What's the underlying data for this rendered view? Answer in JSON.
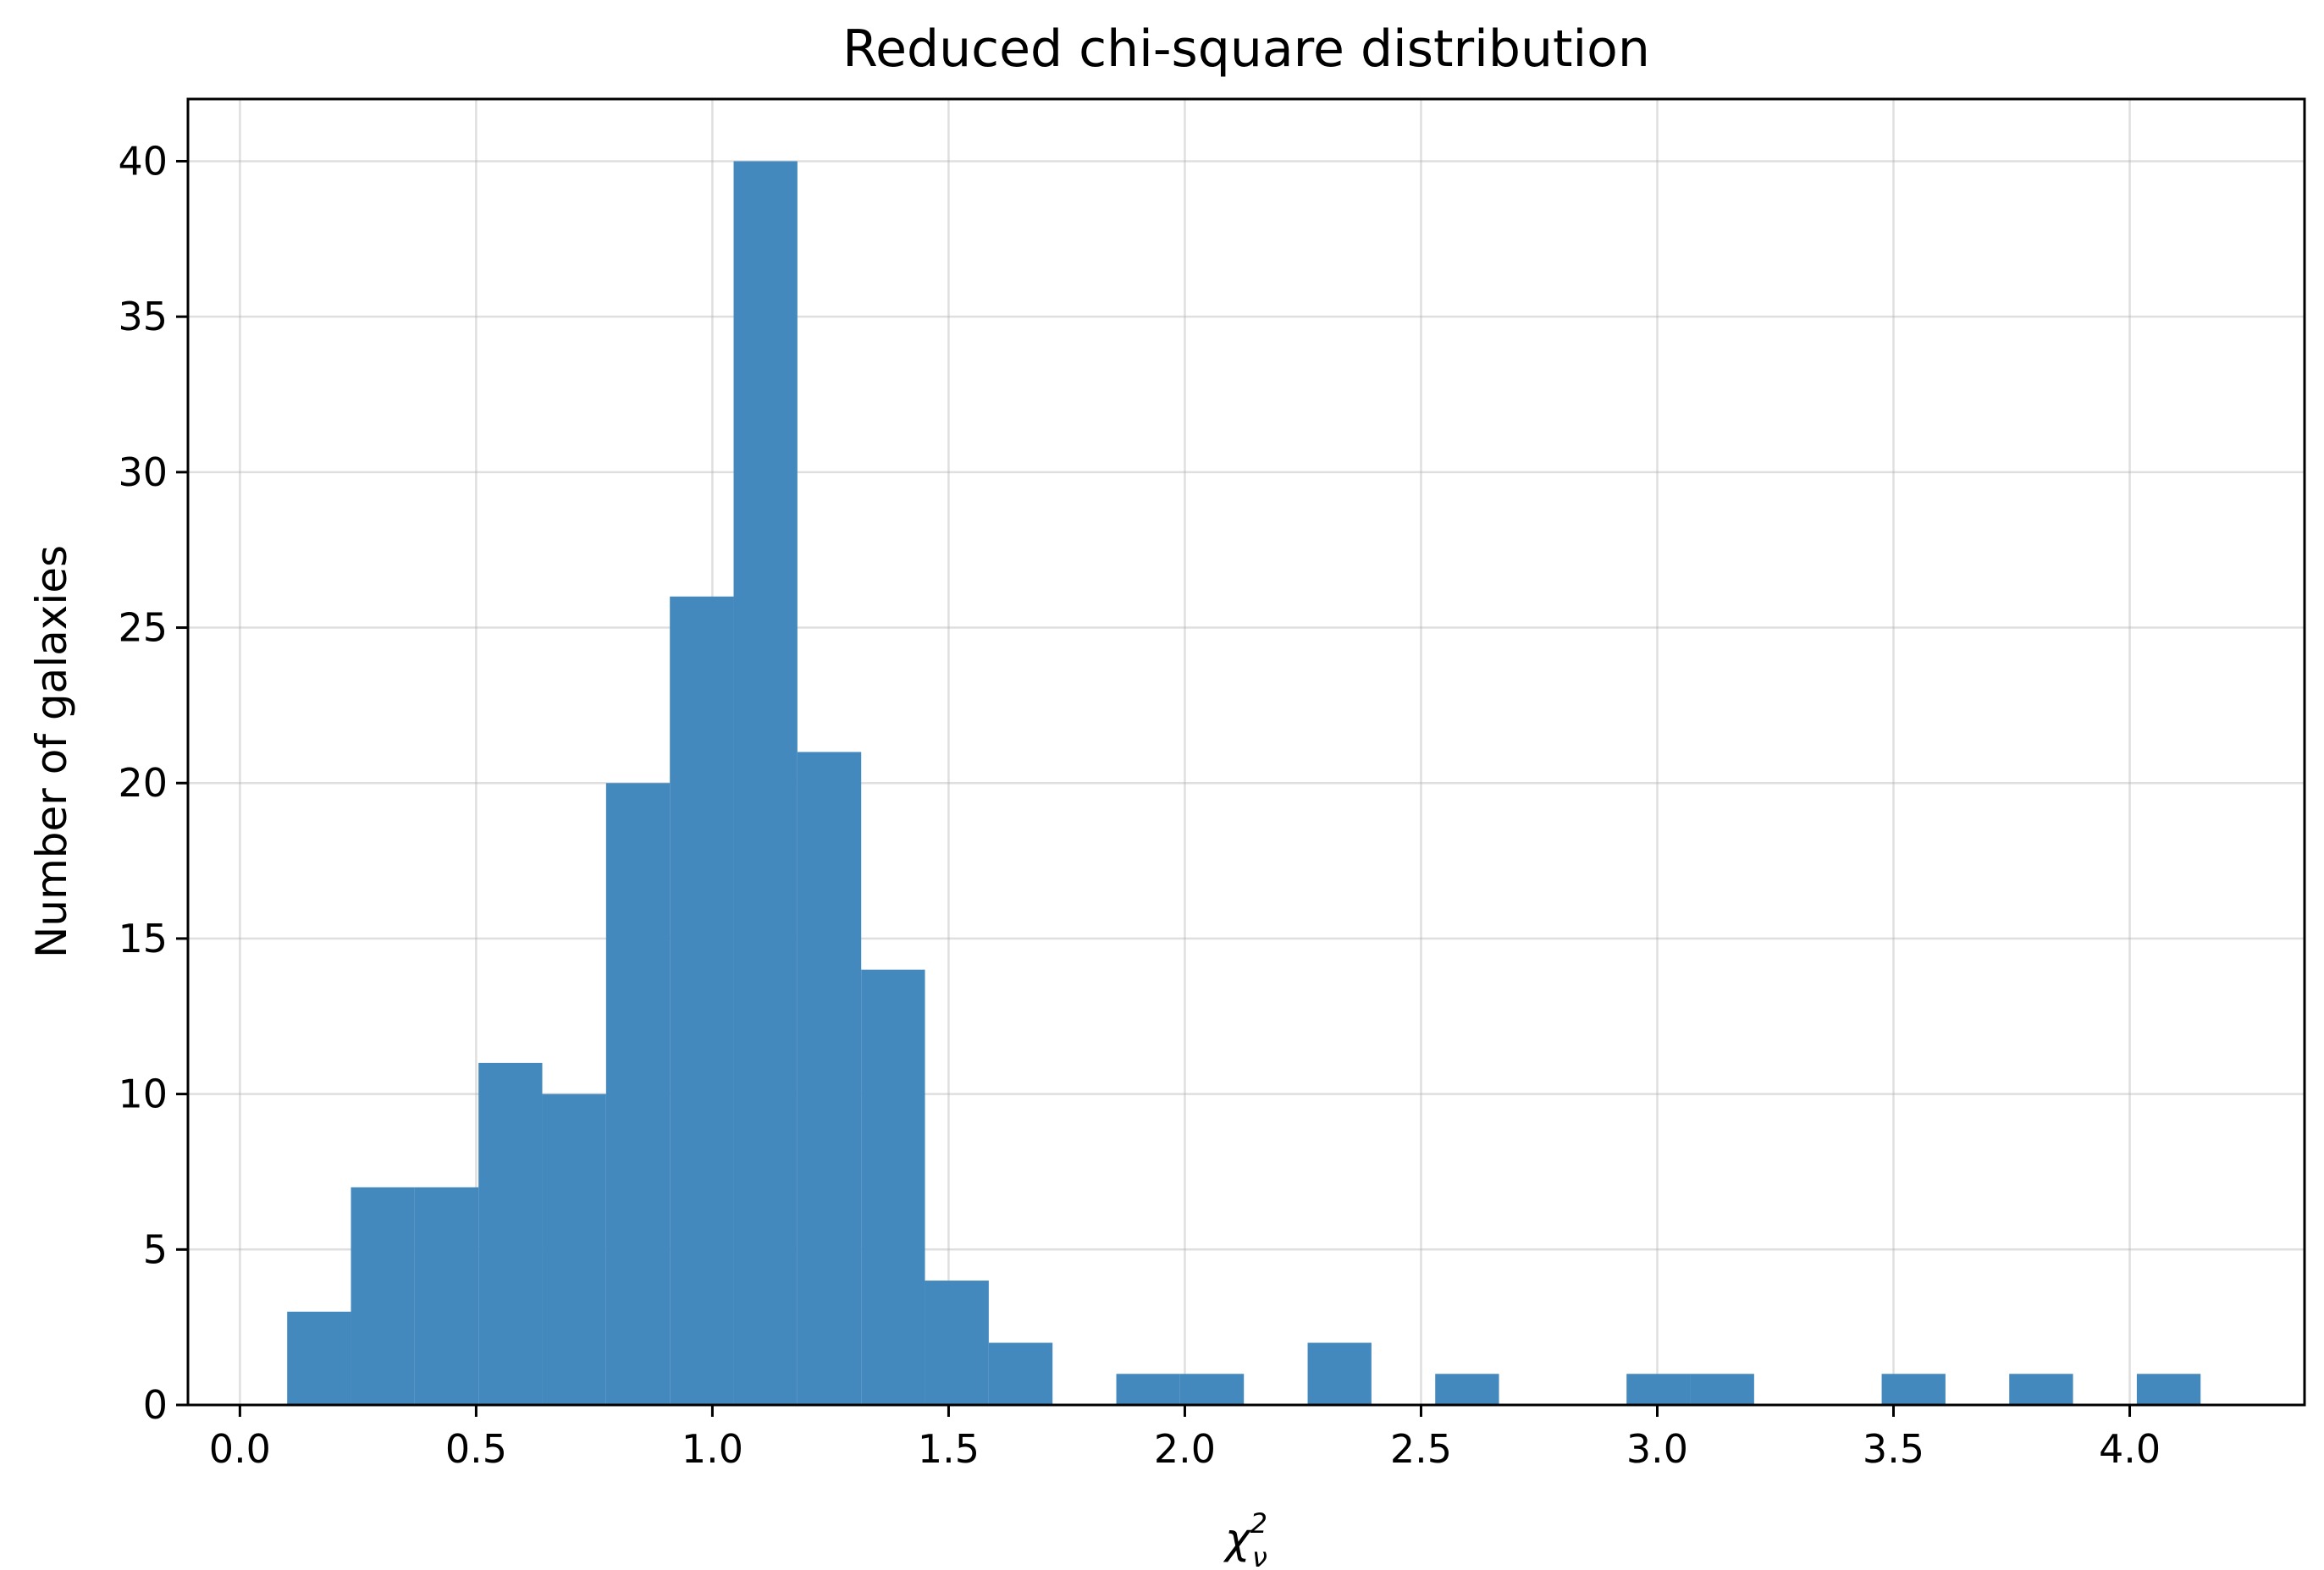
{
  "chart_data": {
    "type": "bar",
    "title": "Reduced chi-square distribution",
    "xlabel_symbol": "χ",
    "xlabel_sup": "2",
    "xlabel_sub": "ν",
    "ylabel": "Number of galaxies",
    "xlim": [
      -0.11,
      4.37
    ],
    "ylim": [
      0,
      42
    ],
    "xticks": [
      "0.0",
      "0.5",
      "1.0",
      "1.5",
      "2.0",
      "2.5",
      "3.0",
      "3.5",
      "4.0"
    ],
    "yticks": [
      "0",
      "5",
      "10",
      "15",
      "20",
      "25",
      "30",
      "35",
      "40"
    ],
    "grid": true,
    "bar_color": "#4489be",
    "bin_edges": [
      0.1,
      0.235,
      0.37,
      0.505,
      0.64,
      0.775,
      0.91,
      1.045,
      1.18,
      1.315,
      1.45,
      1.585,
      1.72,
      1.855,
      1.99,
      2.125,
      2.26,
      2.395,
      2.53,
      2.665,
      2.8,
      2.935,
      3.07,
      3.205,
      3.34,
      3.475,
      3.61,
      3.745,
      3.88,
      4.015,
      4.15
    ],
    "counts": [
      3,
      7,
      7,
      11,
      10,
      20,
      26,
      40,
      21,
      14,
      4,
      2,
      0,
      1,
      1,
      0,
      2,
      0,
      1,
      0,
      0,
      1,
      1,
      0,
      0,
      1,
      0,
      1,
      0,
      1
    ]
  }
}
